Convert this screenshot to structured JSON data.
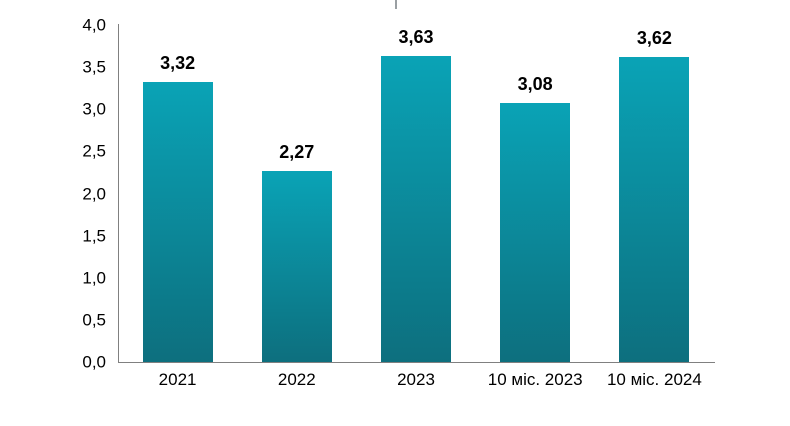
{
  "chart_data": {
    "type": "bar",
    "categories": [
      "2021",
      "2022",
      "2023",
      "10 міс. 2023",
      "10 міс. 2024"
    ],
    "values": [
      3.32,
      2.27,
      3.63,
      3.08,
      3.62
    ],
    "value_labels": [
      "3,32",
      "2,27",
      "3,63",
      "3,08",
      "3,62"
    ],
    "title": "",
    "xlabel": "",
    "ylabel": "",
    "ylim": [
      0,
      4
    ],
    "ytick_step": 0.5,
    "ytick_labels": [
      "0,0",
      "0,5",
      "1,0",
      "1,5",
      "2,0",
      "2,5",
      "3,0",
      "3,5",
      "4,0"
    ],
    "grid": false,
    "legend": false,
    "colors": {
      "bar_gradient_top": "#0aa3b6",
      "bar_gradient_bottom": "#0d6f7e",
      "axis_line": "#808080",
      "top_tick": "#9a9fa3",
      "label_text": "#000000",
      "background": "#ffffff"
    }
  }
}
